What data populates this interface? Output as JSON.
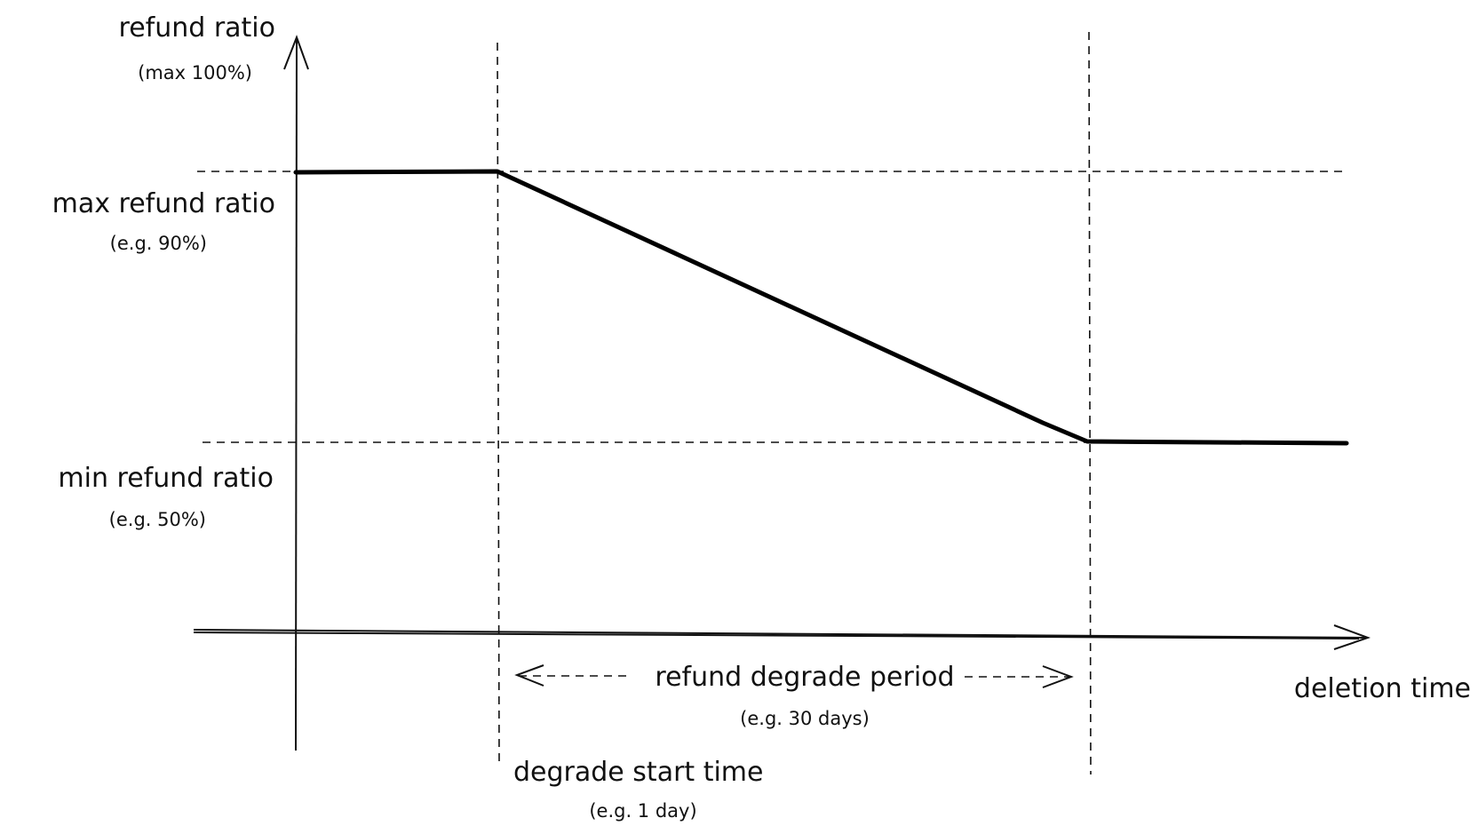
{
  "y_axis": {
    "label": "refund ratio",
    "note": "(max 100%)"
  },
  "x_axis": {
    "label": "deletion time"
  },
  "max_line": {
    "label": "max refund ratio",
    "note": "(e.g. 90%)",
    "value_percent": 90
  },
  "min_line": {
    "label": "min refund ratio",
    "note": "(e.g. 50%)",
    "value_percent": 50
  },
  "degrade_start": {
    "label": "degrade start time",
    "note": "(e.g. 1 day)"
  },
  "degrade_period": {
    "label": "refund degrade period",
    "note": "(e.g. 30 days)"
  }
}
